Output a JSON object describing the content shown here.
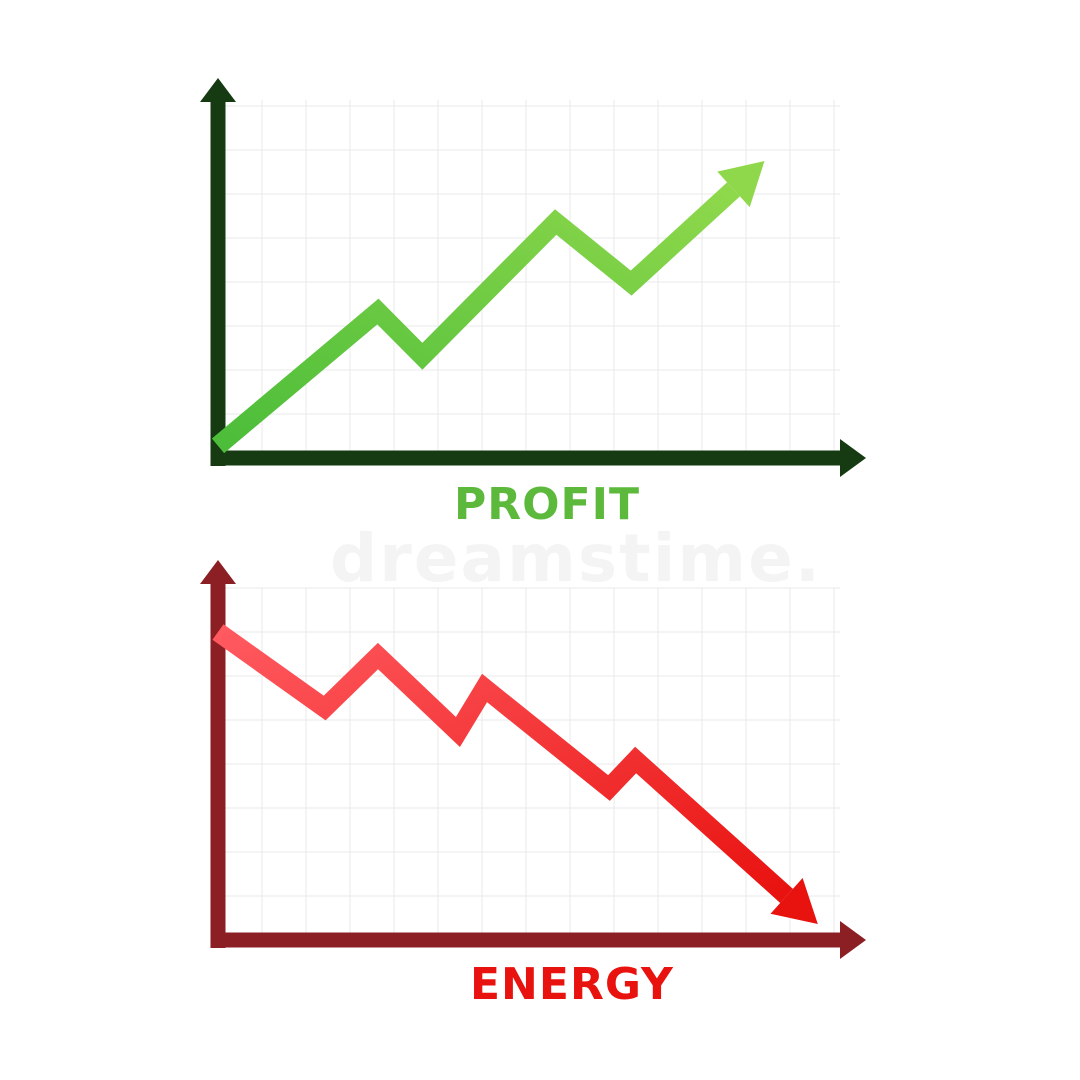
{
  "watermark": "dreamstime.",
  "chart_data": [
    {
      "type": "line",
      "title": "PROFIT",
      "title_color": "#5cb93b",
      "axis_color": "#163b12",
      "line_color_start": "#4cbd3a",
      "line_color_end": "#8fd84b",
      "grid": true,
      "trend": "up",
      "x": [
        0,
        3.6,
        4.6,
        7.6,
        9.3,
        12.3
      ],
      "y": [
        0.3,
        3.6,
        2.5,
        5.8,
        4.3,
        7.3
      ],
      "xlim": [
        0,
        14.0
      ],
      "ylim": [
        0,
        8.8
      ]
    },
    {
      "type": "line",
      "title": "ENERGY",
      "title_color": "#e8120f",
      "axis_color": "#8b1f24",
      "line_color_start": "#ff5a60",
      "line_color_end": "#e8120f",
      "grid": true,
      "trend": "down",
      "x": [
        0,
        2.4,
        3.6,
        5.4,
        6.0,
        8.8,
        9.4,
        13.5
      ],
      "y": [
        7.7,
        5.8,
        7.1,
        5.2,
        6.3,
        3.8,
        4.5,
        0.4
      ],
      "xlim": [
        0,
        14.0
      ],
      "ylim": [
        0,
        8.8
      ]
    }
  ]
}
